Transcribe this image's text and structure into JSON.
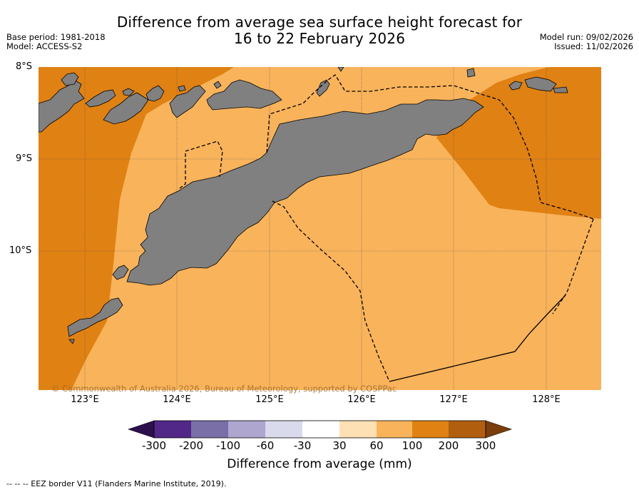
{
  "header": {
    "title_line1": "Difference from average sea surface height forecast for",
    "title_line2": "16 to 22 February 2026",
    "base_period": "Base period: 1981-2018",
    "model": "Model: ACCESS-S2",
    "model_run": "Model run: 09/02/2026",
    "issued": "Issued: 11/02/2026"
  },
  "map": {
    "lat_labels": [
      "8°S",
      "9°S",
      "10°S"
    ],
    "lon_labels": [
      "123°E",
      "124°E",
      "125°E",
      "126°E",
      "127°E",
      "128°E"
    ],
    "copyright": "© Commonwealth of Australia 2026, Bureau of Meteorology, supported by COSPPac",
    "land_color": "#808080",
    "anomaly_fill": {
      "ocean_main_bin": "60 to 100",
      "ocean_east_west_bin": "100 to 200"
    }
  },
  "colorbar": {
    "tick_labels": [
      "-300",
      "-200",
      "-100",
      "-60",
      "-30",
      "30",
      "60",
      "100",
      "200",
      "300"
    ],
    "colors": [
      "#2d0f4e",
      "#512888",
      "#7b6fa8",
      "#aea6cf",
      "#d9dbec",
      "#ffffff",
      "#fde0b4",
      "#f9b35b",
      "#e08113",
      "#b25e0f",
      "#7b3e0a"
    ],
    "title": "Difference from average (mm)"
  },
  "footer": {
    "legend_note": "--  --  -- EEZ border V11 (Flanders Marine Institute, 2019)."
  }
}
